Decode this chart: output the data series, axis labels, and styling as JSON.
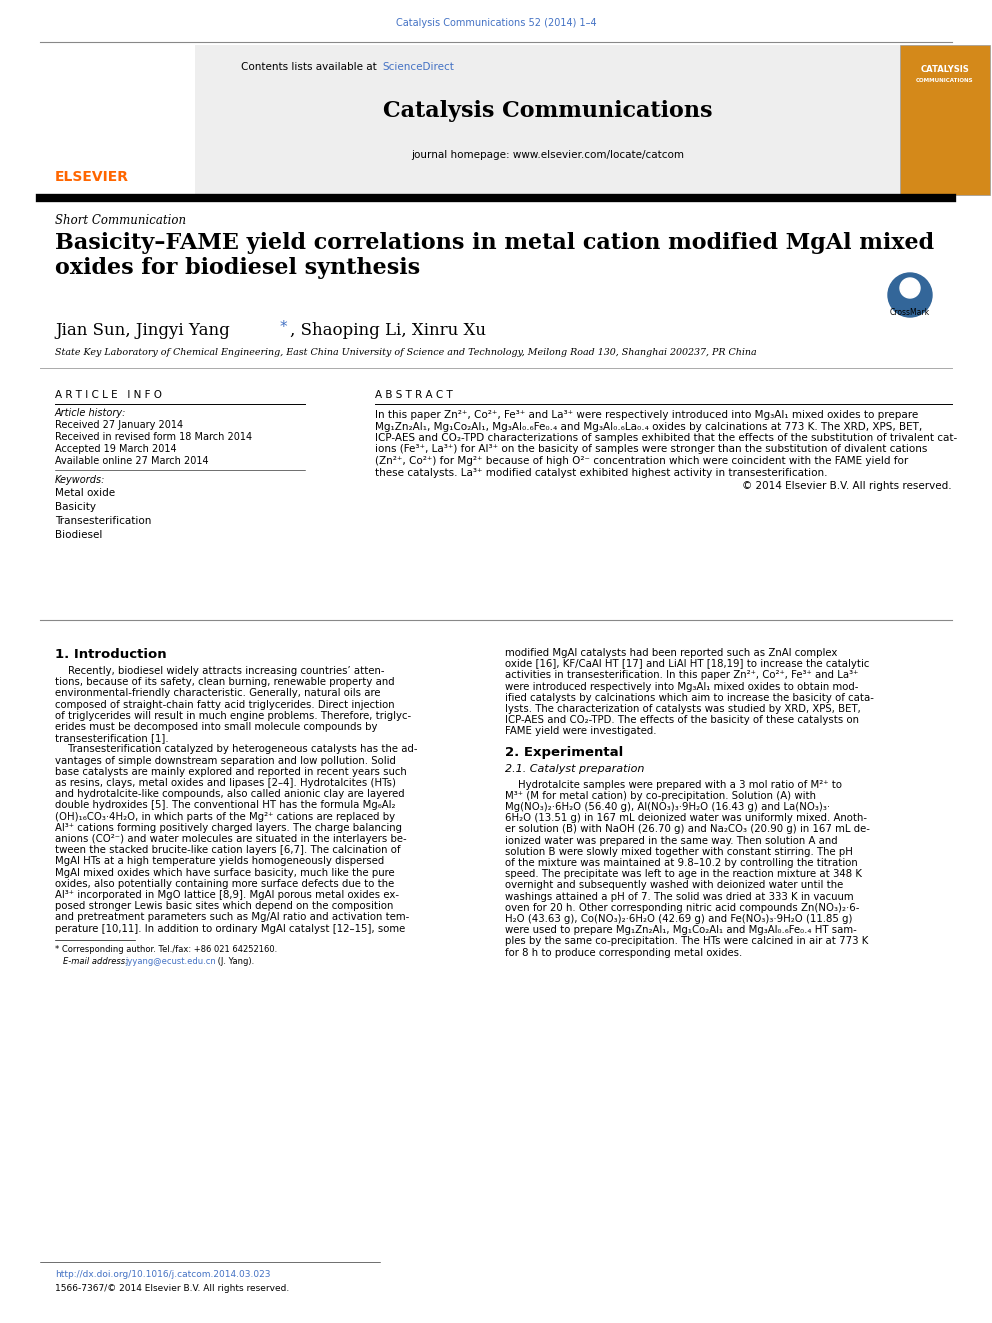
{
  "page_width": 9.92,
  "page_height": 13.23,
  "dpi": 100,
  "bg_color": "#ffffff",
  "top_journal_ref": "Catalysis Communications 52 (2014) 1–4",
  "top_journal_ref_color": "#4472C4",
  "journal_name": "Catalysis Communications",
  "sciencedirect_color": "#4472C4",
  "homepage_text": "journal homepage: www.elsevier.com/locate/catcom",
  "elsevier_color": "#FF6600",
  "article_type": "Short Communication",
  "article_title": "Basicity–FAME yield correlations in metal cation modified MgAl mixed\noxides for biodiesel synthesis",
  "affiliation": "State Key Laboratory of Chemical Engineering, East China University of Science and Technology, Meilong Road 130, Shanghai 200237, PR China",
  "article_info_header": "A R T I C L E   I N F O",
  "abstract_header": "A B S T R A C T",
  "article_history_header": "Article history:",
  "received_date": "Received 27 January 2014",
  "revised_date": "Received in revised form 18 March 2014",
  "accepted_date": "Accepted 19 March 2014",
  "online_date": "Available online 27 March 2014",
  "keywords_header": "Keywords:",
  "keywords": [
    "Metal oxide",
    "Basicity",
    "Transesterification",
    "Biodiesel"
  ],
  "copyright_text": "© 2014 Elsevier B.V. All rights reserved.",
  "intro_header": "1. Introduction",
  "experimental_header": "2. Experimental",
  "catalyst_header": "2.1. Catalyst preparation",
  "footnote_star": "* Corresponding author. Tel./fax: +86 021 64252160.",
  "footnote_email_prefix": "E-mail address: ",
  "footnote_email": "jyyang@ecust.edu.cn",
  "footnote_email_suffix": " (J. Yang).",
  "footer_doi": "http://dx.doi.org/10.1016/j.catcom.2014.03.023",
  "footer_issn": "1566-7367/© 2014 Elsevier B.V. All rights reserved.",
  "footer_doi_color": "#4472C4",
  "abstract_lines": [
    "In this paper Zn²⁺, Co²⁺, Fe³⁺ and La³⁺ were respectively introduced into Mg₃Al₁ mixed oxides to prepare",
    "Mg₁Zn₂Al₁, Mg₁Co₂Al₁, Mg₃Al₀.₆Fe₀.₄ and Mg₃Al₀.₆La₀.₄ oxides by calcinations at 773 K. The XRD, XPS, BET,",
    "ICP-AES and CO₂-TPD characterizations of samples exhibited that the effects of the substitution of trivalent cat-",
    "ions (Fe³⁺, La³⁺) for Al³⁺ on the basicity of samples were stronger than the substitution of divalent cations",
    "(Zn²⁺, Co²⁺) for Mg²⁺ because of high O²⁻ concentration which were coincident with the FAME yield for",
    "these catalysts. La³⁺ modified catalyst exhibited highest activity in transesterification."
  ],
  "intro_left_lines": [
    "    Recently, biodiesel widely attracts increasing countries’ atten-",
    "tions, because of its safety, clean burning, renewable property and",
    "environmental-friendly characteristic. Generally, natural oils are",
    "composed of straight-chain fatty acid triglycerides. Direct injection",
    "of triglycerides will result in much engine problems. Therefore, triglyc-",
    "erides must be decomposed into small molecule compounds by",
    "transesterification [1].",
    "    Transesterification catalyzed by heterogeneous catalysts has the ad-",
    "vantages of simple downstream separation and low pollution. Solid",
    "base catalysts are mainly explored and reported in recent years such",
    "as resins, clays, metal oxides and lipases [2–4]. Hydrotalcites (HTs)",
    "and hydrotalcite-like compounds, also called anionic clay are layered",
    "double hydroxides [5]. The conventional HT has the formula Mg₆Al₂",
    "(OH)₁₆CO₃·4H₂O, in which parts of the Mg²⁺ cations are replaced by",
    "Al³⁺ cations forming positively charged layers. The charge balancing",
    "anions (CO²⁻) and water molecules are situated in the interlayers be-",
    "tween the stacked brucite-like cation layers [6,7]. The calcination of",
    "MgAl HTs at a high temperature yields homogeneously dispersed",
    "MgAl mixed oxides which have surface basicity, much like the pure",
    "oxides, also potentially containing more surface defects due to the",
    "Al³⁺ incorporated in MgO lattice [8,9]. MgAl porous metal oxides ex-",
    "posed stronger Lewis basic sites which depend on the composition",
    "and pretreatment parameters such as Mg/Al ratio and activation tem-",
    "perature [10,11]. In addition to ordinary MgAl catalyst [12–15], some"
  ],
  "intro_right_lines": [
    "modified MgAl catalysts had been reported such as ZnAl complex",
    "oxide [16], KF/CaAl HT [17] and LiAl HT [18,19] to increase the catalytic",
    "activities in transesterification. In this paper Zn²⁺, Co²⁺, Fe³⁺ and La³⁺",
    "were introduced respectively into Mg₃Al₁ mixed oxides to obtain mod-",
    "ified catalysts by calcinations which aim to increase the basicity of cata-",
    "lysts. The characterization of catalysts was studied by XRD, XPS, BET,",
    "ICP-AES and CO₂-TPD. The effects of the basicity of these catalysts on",
    "FAME yield were investigated."
  ],
  "catalyst_lines": [
    "    Hydrotalcite samples were prepared with a 3 mol ratio of M²⁺ to",
    "M³⁺ (M for metal cation) by co-precipitation. Solution (A) with",
    "Mg(NO₃)₂·6H₂O (56.40 g), Al(NO₃)₃·9H₂O (16.43 g) and La(NO₃)₃·",
    "6H₂O (13.51 g) in 167 mL deionized water was uniformly mixed. Anoth-",
    "er solution (B) with NaOH (26.70 g) and Na₂CO₃ (20.90 g) in 167 mL de-",
    "ionized water was prepared in the same way. Then solution A and",
    "solution B were slowly mixed together with constant stirring. The pH",
    "of the mixture was maintained at 9.8–10.2 by controlling the titration",
    "speed. The precipitate was left to age in the reaction mixture at 348 K",
    "overnight and subsequently washed with deionized water until the",
    "washings attained a pH of 7. The solid was dried at 333 K in vacuum",
    "oven for 20 h. Other corresponding nitric acid compounds Zn(NO₃)₂·6-",
    "H₂O (43.63 g), Co(NO₃)₂·6H₂O (42.69 g) and Fe(NO₃)₃·9H₂O (11.85 g)",
    "were used to prepare Mg₁Zn₂Al₁, Mg₁Co₂Al₁ and Mg₃Al₀.₆Fe₀.₄ HT sam-",
    "ples by the same co-precipitation. The HTs were calcined in air at 773 K",
    "for 8 h to produce corresponding metal oxides."
  ]
}
